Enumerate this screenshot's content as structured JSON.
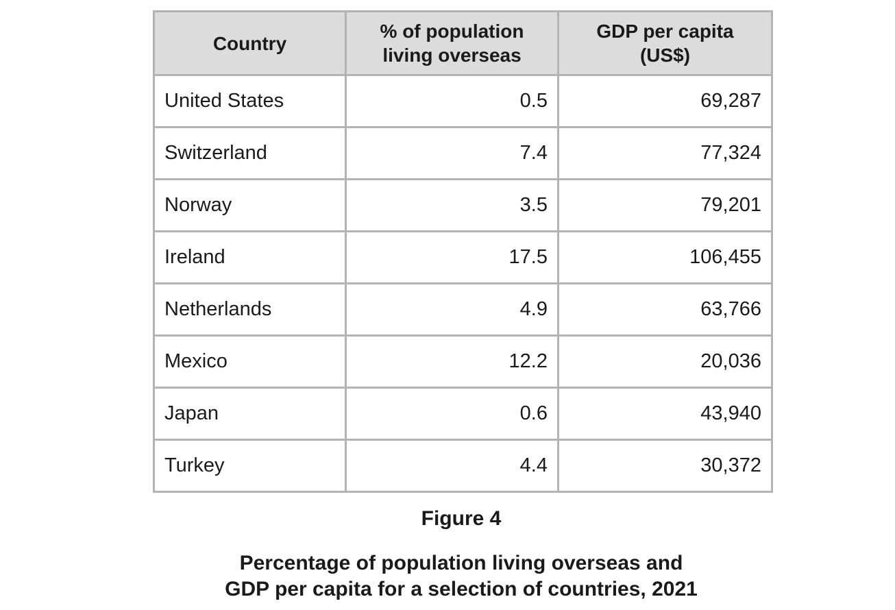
{
  "chart_data": {
    "type": "table",
    "columns": [
      "Country",
      "% of population living overseas",
      "GDP per capita (US$)"
    ],
    "header_lines": [
      [
        "Country"
      ],
      [
        "% of population",
        "living overseas"
      ],
      [
        "GDP per capita",
        "(US$)"
      ]
    ],
    "rows": [
      {
        "country": "United States",
        "pct_overseas": "0.5",
        "gdp_per_capita": "69,287"
      },
      {
        "country": "Switzerland",
        "pct_overseas": "7.4",
        "gdp_per_capita": "77,324"
      },
      {
        "country": "Norway",
        "pct_overseas": "3.5",
        "gdp_per_capita": "79,201"
      },
      {
        "country": "Ireland",
        "pct_overseas": "17.5",
        "gdp_per_capita": "106,455"
      },
      {
        "country": "Netherlands",
        "pct_overseas": "4.9",
        "gdp_per_capita": "63,766"
      },
      {
        "country": "Mexico",
        "pct_overseas": "12.2",
        "gdp_per_capita": "20,036"
      },
      {
        "country": "Japan",
        "pct_overseas": "0.6",
        "gdp_per_capita": "43,940"
      },
      {
        "country": "Turkey",
        "pct_overseas": "4.4",
        "gdp_per_capita": "30,372"
      }
    ]
  },
  "figure": {
    "label": "Figure 4",
    "caption_line1": "Percentage of population living overseas and",
    "caption_line2": "GDP per capita for a selection of countries, 2021"
  }
}
